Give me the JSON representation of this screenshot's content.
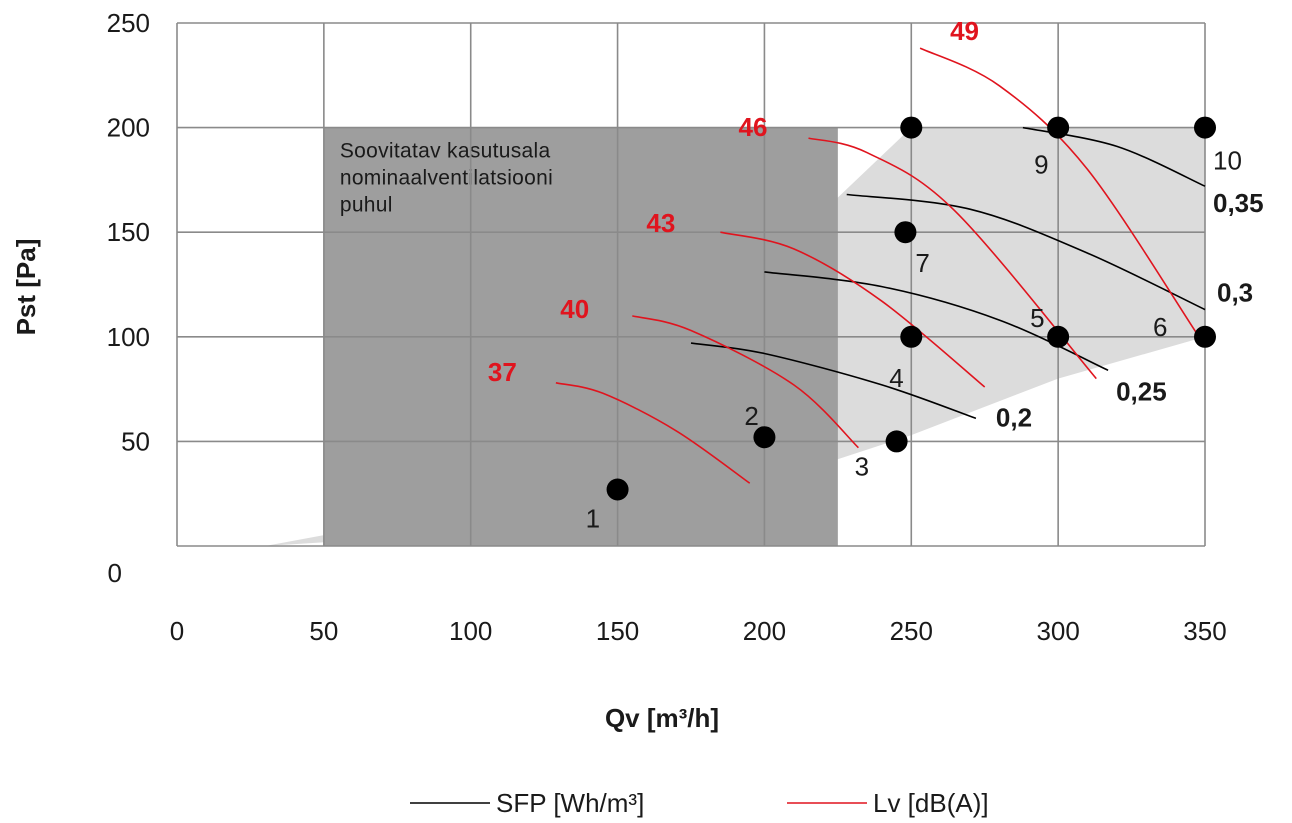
{
  "chart_data": {
    "type": "scatter",
    "xlabel": "Qv [m³/h]",
    "ylabel": "Pst [Pa]",
    "xlim": [
      0,
      350
    ],
    "ylim": [
      0,
      250
    ],
    "x_ticks": [
      "0",
      "50",
      "100",
      "150",
      "200",
      "250",
      "300",
      "350"
    ],
    "y_ticks": [
      "0",
      "50",
      "100",
      "150",
      "200",
      "250"
    ],
    "grid": true,
    "legend_position": "bottom",
    "legend": [
      {
        "label": "SFP [Wh/m³]",
        "color": "#000000"
      },
      {
        "label": "Lv [dB(A)]",
        "color": "#e0141e"
      }
    ],
    "recommended_zone": {
      "label_lines": [
        "Soovitatav kasutusala",
        "nominaalventilatsiooni",
        "puhul"
      ],
      "x_range": [
        50,
        225
      ],
      "y_range": [
        0,
        200
      ],
      "color": "#9e9e9e"
    },
    "operating_area": {
      "color": "#dcdcdc",
      "polygon": [
        [
          30,
          0
        ],
        [
          80,
          13
        ],
        [
          113,
          28
        ],
        [
          140,
          53
        ],
        [
          250,
          200
        ],
        [
          350,
          200
        ],
        [
          350,
          100
        ],
        [
          300,
          80
        ],
        [
          250,
          53
        ],
        [
          200,
          30
        ],
        [
          150,
          20
        ],
        [
          130,
          14
        ],
        [
          75,
          4
        ],
        [
          30,
          0
        ]
      ]
    },
    "points": [
      {
        "label": "1",
        "x": 150,
        "y": 27
      },
      {
        "label": "2",
        "x": 200,
        "y": 52
      },
      {
        "label": "3",
        "x": 245,
        "y": 50
      },
      {
        "label": "4",
        "x": 250,
        "y": 100
      },
      {
        "label": "5",
        "x": 300,
        "y": 100
      },
      {
        "label": "6",
        "x": 350,
        "y": 100
      },
      {
        "label": "7",
        "x": 248,
        "y": 150
      },
      {
        "label": "9",
        "x": 300,
        "y": 200
      },
      {
        "label": "10",
        "x": 350,
        "y": 200
      },
      {
        "label": "",
        "x": 250,
        "y": 200
      }
    ],
    "sfp_series": [
      {
        "label": "0,2",
        "points": [
          [
            175,
            97
          ],
          [
            200,
            92
          ],
          [
            240,
            77
          ],
          [
            272,
            61
          ]
        ]
      },
      {
        "label": "0,25",
        "points": [
          [
            200,
            131
          ],
          [
            240,
            124
          ],
          [
            280,
            108
          ],
          [
            317,
            84
          ]
        ]
      },
      {
        "label": "0,3",
        "points": [
          [
            228,
            168
          ],
          [
            270,
            161
          ],
          [
            310,
            140
          ],
          [
            350,
            113
          ]
        ]
      },
      {
        "label": "0,35",
        "points": [
          [
            288,
            200
          ],
          [
            320,
            191
          ],
          [
            350,
            172
          ]
        ]
      }
    ],
    "lv_series": [
      {
        "label": "37",
        "points": [
          [
            129,
            78
          ],
          [
            145,
            73
          ],
          [
            170,
            55
          ],
          [
            195,
            30
          ]
        ]
      },
      {
        "label": "40",
        "points": [
          [
            155,
            110
          ],
          [
            175,
            103
          ],
          [
            210,
            77
          ],
          [
            232,
            47
          ]
        ]
      },
      {
        "label": "43",
        "points": [
          [
            185,
            150
          ],
          [
            210,
            142
          ],
          [
            240,
            117
          ],
          [
            275,
            76
          ]
        ]
      },
      {
        "label": "46",
        "points": [
          [
            215,
            195
          ],
          [
            235,
            188
          ],
          [
            265,
            160
          ],
          [
            313,
            80
          ]
        ]
      },
      {
        "label": "49",
        "points": [
          [
            253,
            238
          ],
          [
            280,
            220
          ],
          [
            310,
            180
          ],
          [
            347,
            102
          ]
        ]
      }
    ]
  }
}
